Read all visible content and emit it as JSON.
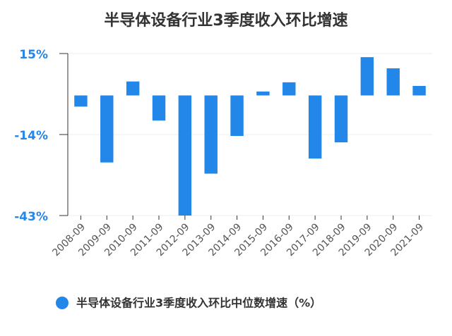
{
  "chart_data": {
    "type": "bar",
    "title": "半导体设备行业3季度收入环比增速",
    "categories": [
      "2008-09",
      "2009-09",
      "2010-09",
      "2011-09",
      "2012-09",
      "2013-09",
      "2014-09",
      "2015-09",
      "2016-09",
      "2017-09",
      "2018-09",
      "2019-09",
      "2020-09",
      "2021-09"
    ],
    "series": [
      {
        "name": "半导体设备行业3季度收入环比中位数增速（%）",
        "color": "#2386e9",
        "values": [
          -4,
          -24,
          5,
          -9,
          -43,
          -28,
          -14.5,
          1.4,
          4.7,
          -22.6,
          -16.8,
          13.7,
          9.7,
          3.4
        ]
      }
    ],
    "ylim": [
      -43,
      15
    ],
    "yticks": [
      {
        "value": -43,
        "label": "-43%"
      },
      {
        "value": -14,
        "label": "-14%"
      },
      {
        "value": 15,
        "label": "15%"
      }
    ],
    "grid": true
  }
}
